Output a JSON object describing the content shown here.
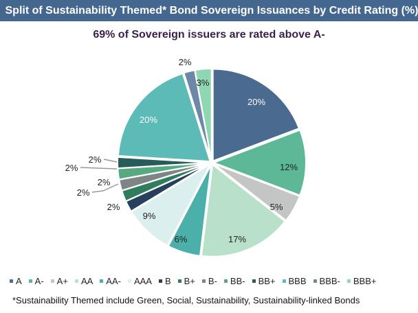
{
  "header": {
    "title": "Split of Sustainability Themed* Bond Sovereign Issuances by Credit Rating (%)"
  },
  "chart_data": {
    "type": "pie",
    "title": "Split of Sustainability Themed* Bond Sovereign Issuances by Credit Rating (%)",
    "subtitle": "69% of Sovereign issuers are rated above A-",
    "legend_position": "bottom",
    "categories": [
      "A",
      "A-",
      "A+",
      "AA",
      "AA-",
      "AAA",
      "B",
      "B+",
      "B-",
      "BB-",
      "BB+",
      "BBB",
      "BBB-",
      "BBB+"
    ],
    "values": [
      20,
      12,
      5,
      17,
      6,
      9,
      2,
      2,
      2,
      2,
      2,
      20,
      2,
      3
    ],
    "labels": [
      "20%",
      "12%",
      "5%",
      "17%",
      "6%",
      "9%",
      "2%",
      "2%",
      "2%",
      "2%",
      "2%",
      "20%",
      "2%",
      "3%"
    ],
    "colors": [
      "#4a6a8f",
      "#5cb896",
      "#c3c6c4",
      "#b9e0c9",
      "#4bb0a9",
      "#dcefef",
      "#27405c",
      "#2f7d5e",
      "#7e8584",
      "#57a97f",
      "#285c5a",
      "#5cbab7",
      "#6d87a9",
      "#8fd6b2"
    ]
  },
  "footnote": "*Sustainability Themed include Green, Social, Sustainability, Sustainability-linked Bonds"
}
